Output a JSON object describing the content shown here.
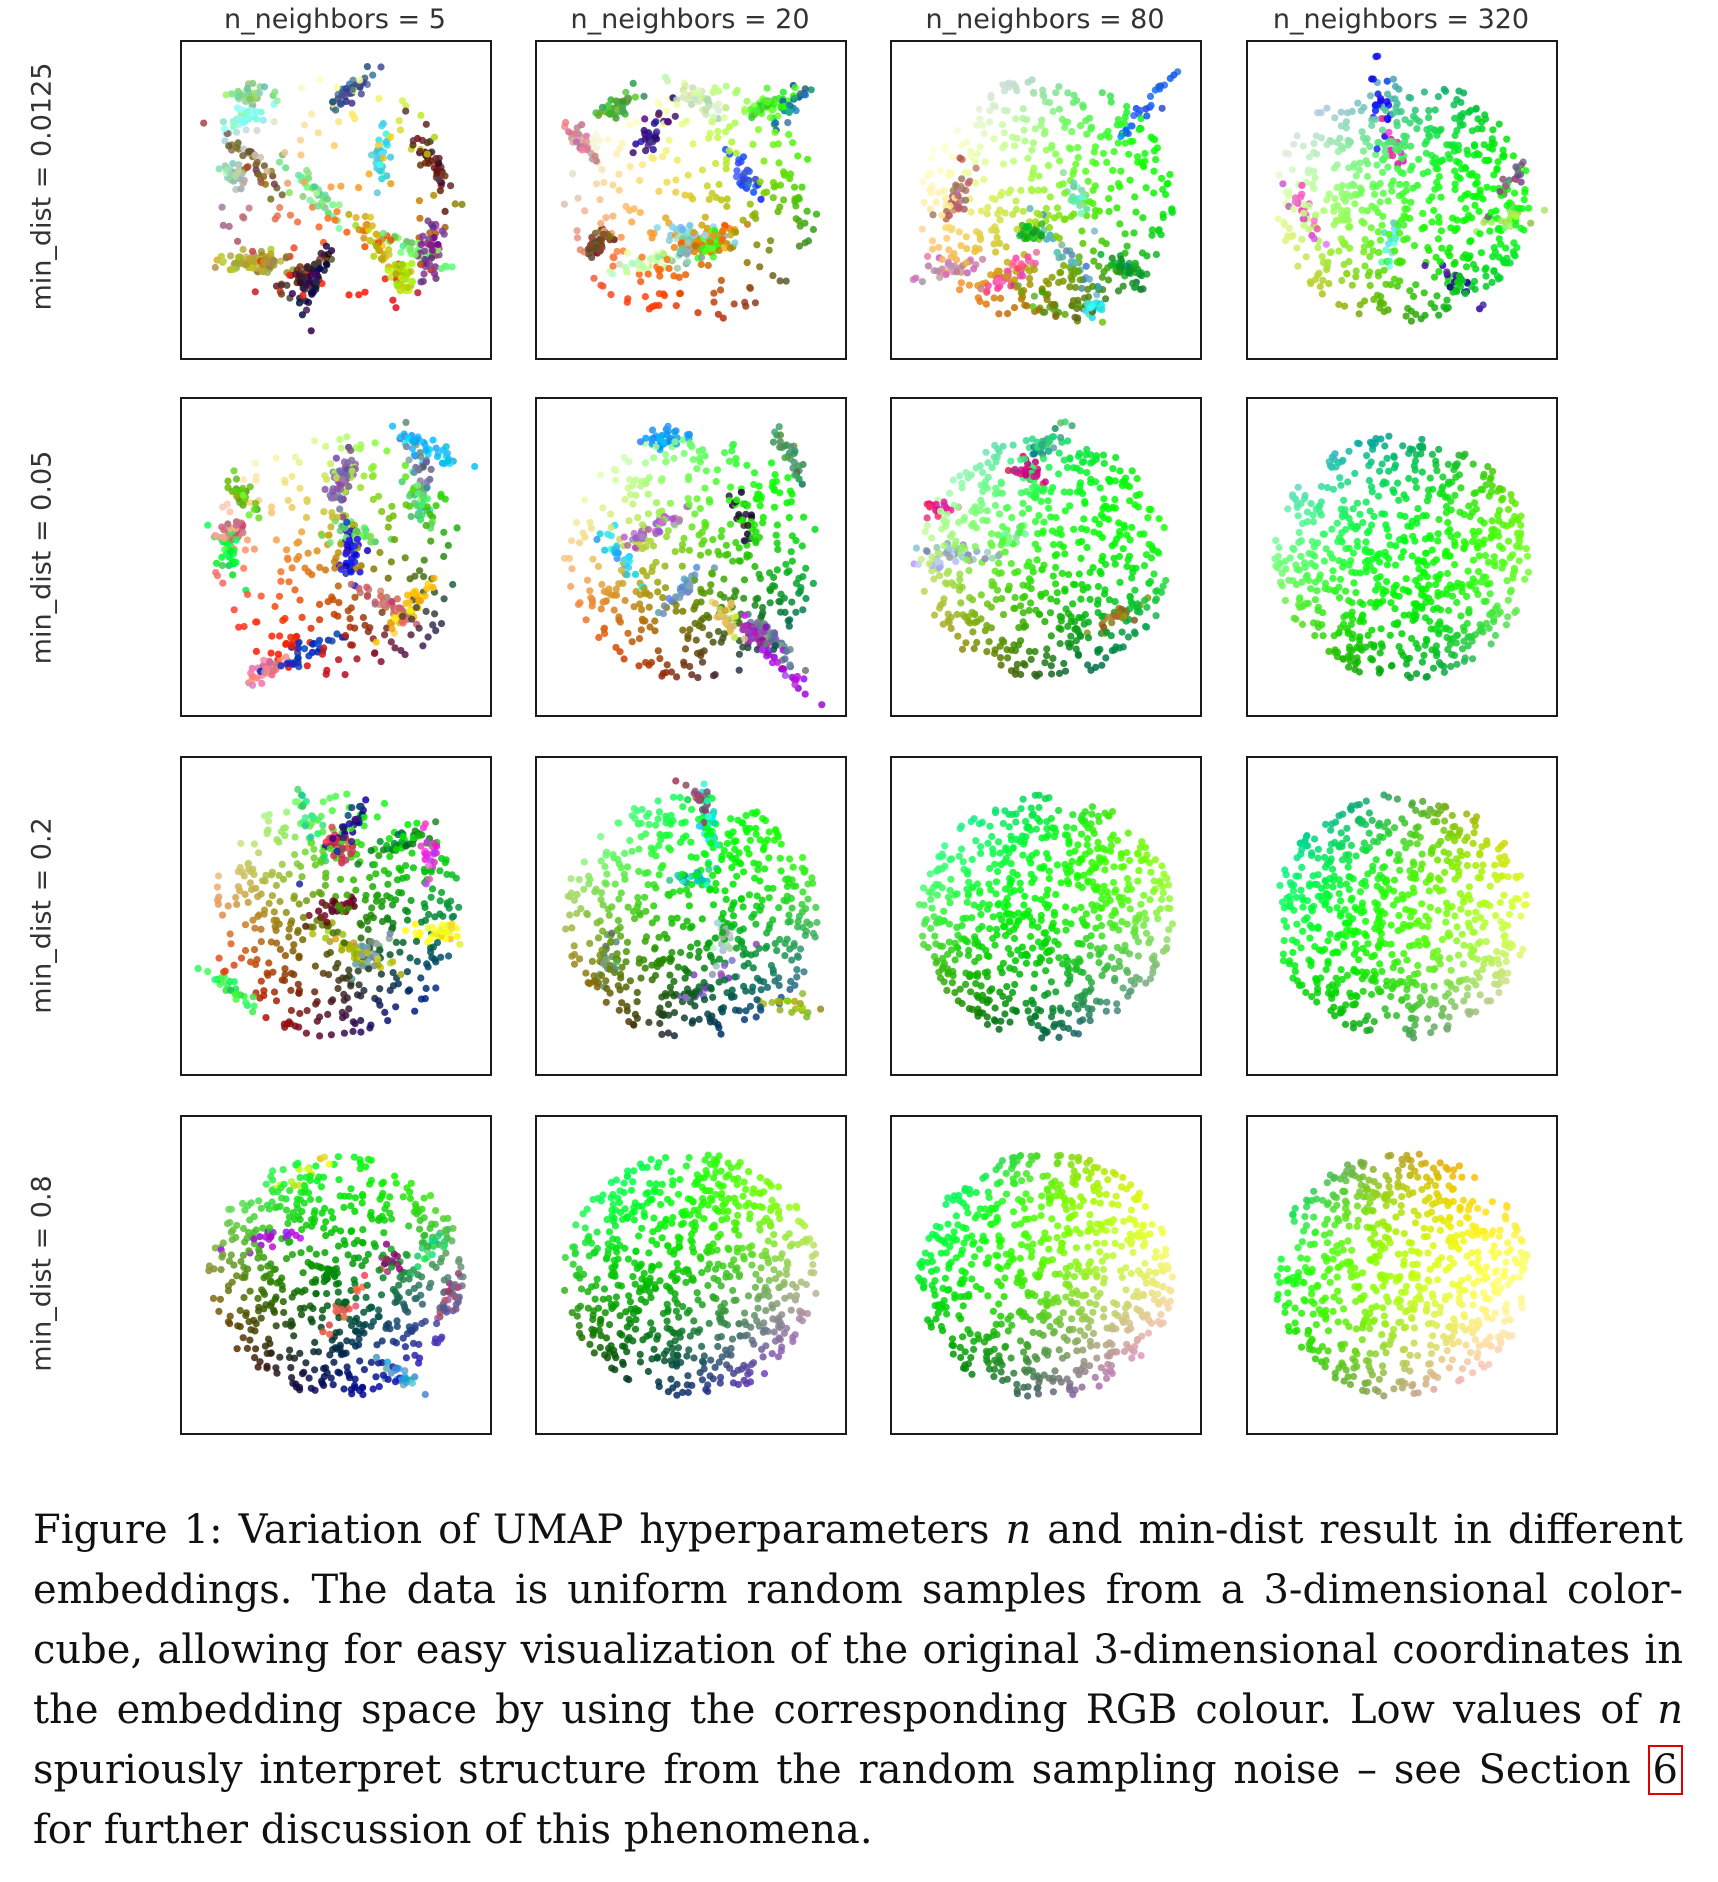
{
  "figure": {
    "column_titles": [
      "n_neighbors = 5",
      "n_neighbors = 20",
      "n_neighbors = 80",
      "n_neighbors = 320"
    ],
    "row_labels": [
      "min_dist = 0.0125",
      "min_dist = 0.05",
      "min_dist = 0.2",
      "min_dist = 0.8"
    ]
  },
  "chart_data": {
    "type": "scatter",
    "panels_layout": "4 rows (min_dist) x 4 columns (n_neighbors)",
    "n_neighbors": [
      5,
      20,
      80,
      320
    ],
    "min_dist": [
      0.0125,
      0.05,
      0.2,
      0.8
    ],
    "point_color": "RGB colour of original 3-dimensional colour-cube coordinates",
    "axes": "hidden",
    "grid": false,
    "legend": "none"
  },
  "caption": {
    "part1": "Figure 1: Variation of UMAP hyperparameters ",
    "n1": "n",
    "part2": " and min-dist result in different embeddings. The data is uniform random samples from a 3-dimensional color-cube, allowing for easy visualization of the original 3-dimensional coordinates in the embedding space by using the corresponding RGB colour. Low values of ",
    "n2": "n",
    "part3": " spuriously interpret structure from the random sampling noise – see Section ",
    "section_ref": "6",
    "part4": " for further discussion of this phenomena."
  }
}
